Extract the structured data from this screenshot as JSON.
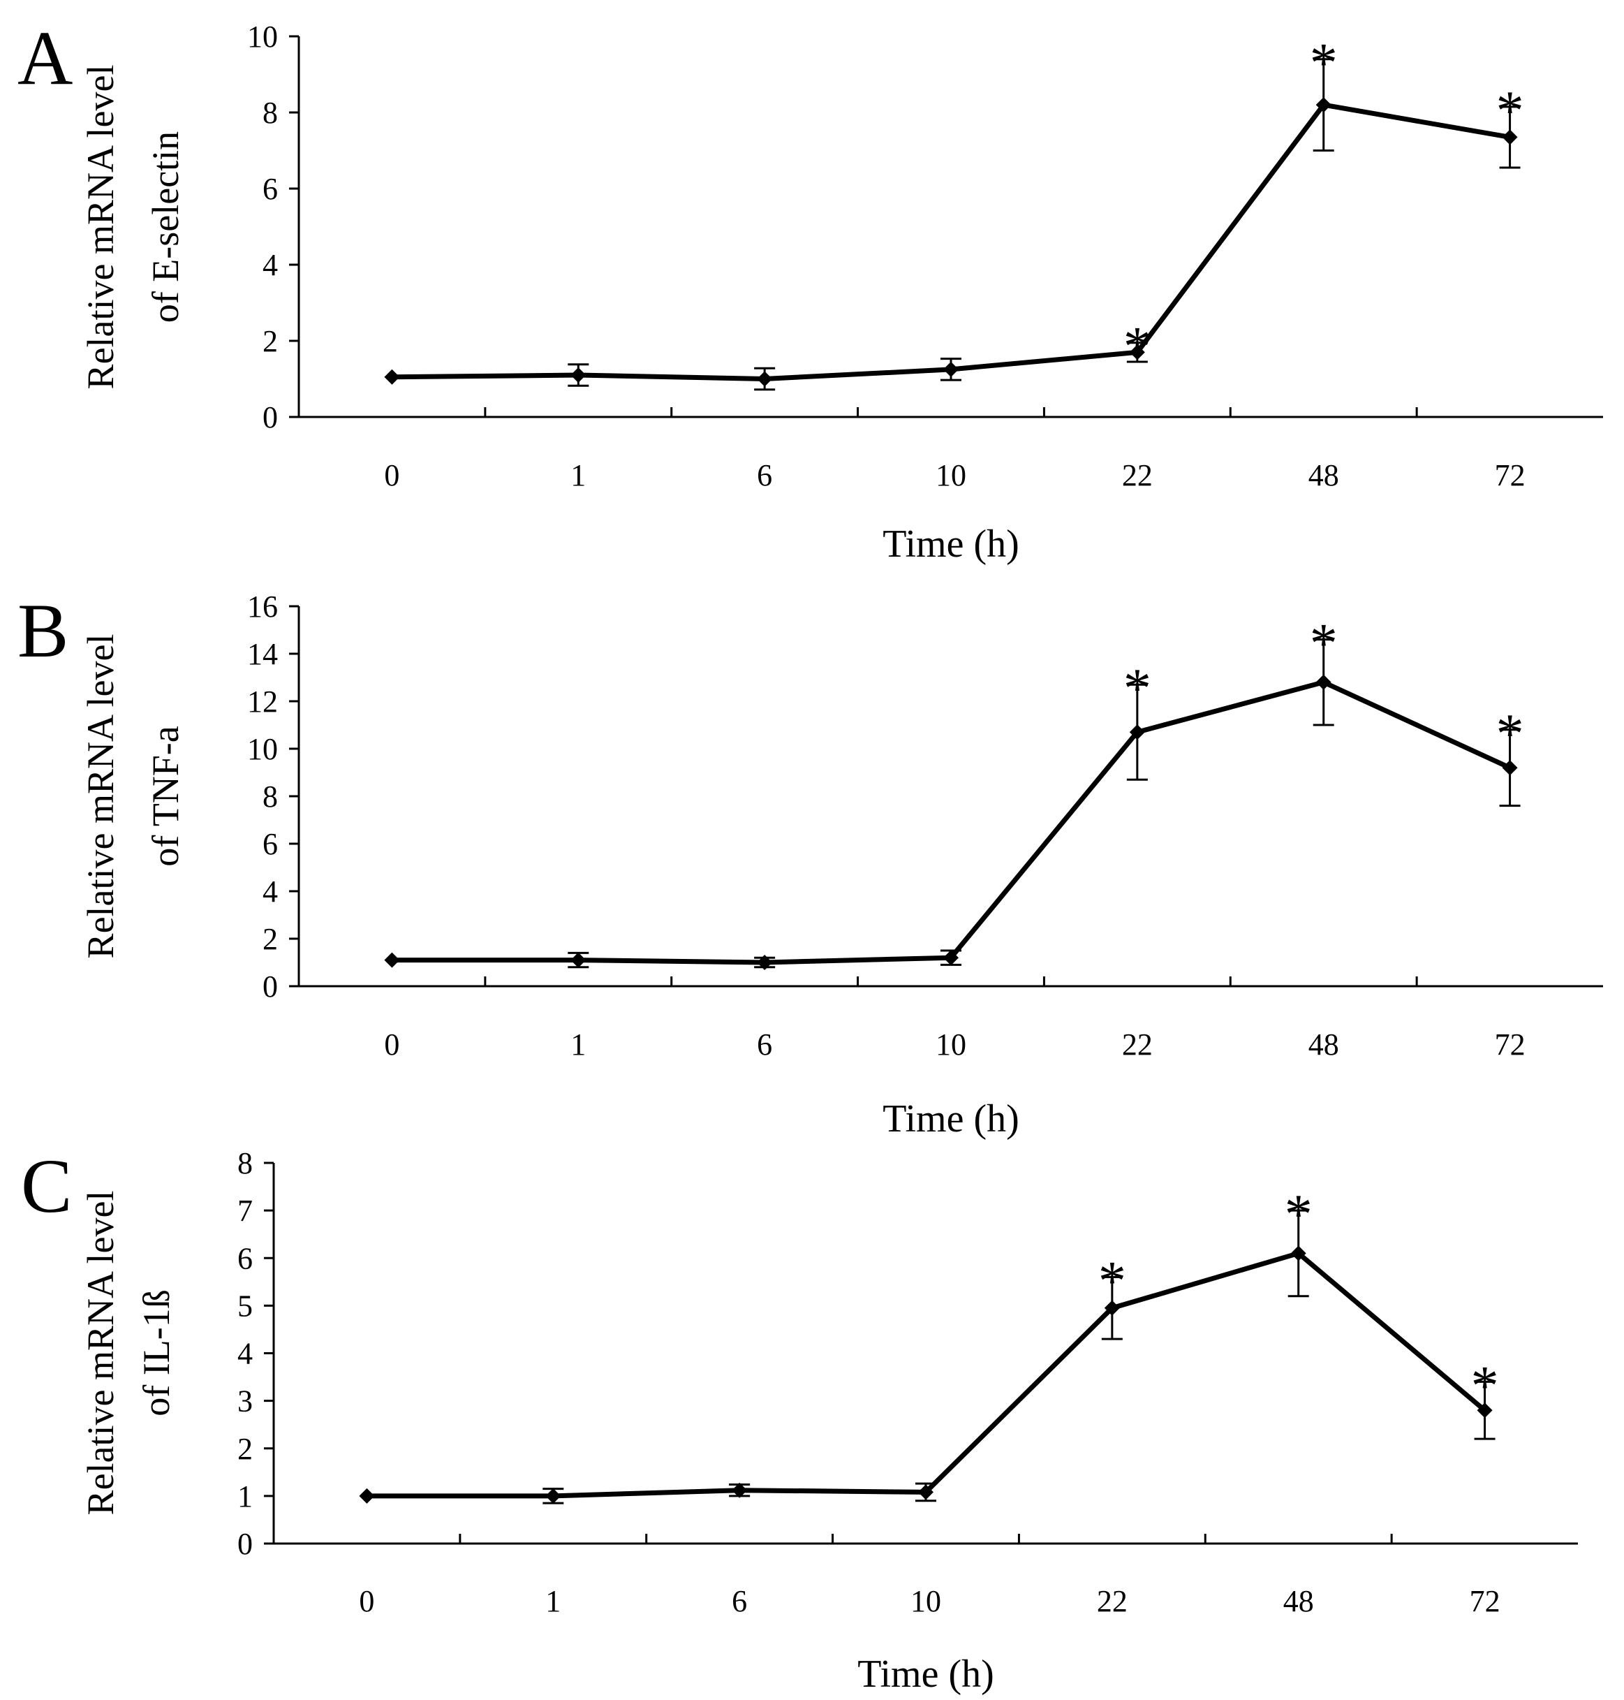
{
  "figure": {
    "panels": [
      {
        "id": "A",
        "letter": "A",
        "chart_data": {
          "type": "line",
          "title": "",
          "xlabel": "Time (h)",
          "ylabel_lines": [
            "Relative mRNA level",
            "of E-selectin"
          ],
          "categories": [
            "0",
            "1",
            "6",
            "10",
            "22",
            "48",
            "72"
          ],
          "series": [
            {
              "name": "E-selectin",
              "values": [
                1.05,
                1.1,
                1.0,
                1.25,
                1.7,
                8.2,
                7.35
              ],
              "errors": [
                0.0,
                0.28,
                0.28,
                0.28,
                0.25,
                1.2,
                0.8
              ],
              "significant": [
                false,
                false,
                false,
                false,
                true,
                true,
                true
              ]
            }
          ],
          "ylim": [
            0,
            10
          ],
          "yticks": [
            0,
            2,
            4,
            6,
            8,
            10
          ],
          "significance_marker": "*",
          "grid": false,
          "legend": "none"
        }
      },
      {
        "id": "B",
        "letter": "B",
        "chart_data": {
          "type": "line",
          "title": "",
          "xlabel": "Time (h)",
          "ylabel_lines": [
            "Relative mRNA level",
            "of TNF-a"
          ],
          "categories": [
            "0",
            "1",
            "6",
            "10",
            "22",
            "48",
            "72"
          ],
          "series": [
            {
              "name": "TNF-a",
              "values": [
                1.1,
                1.1,
                1.0,
                1.2,
                10.7,
                12.8,
                9.2
              ],
              "errors": [
                0.0,
                0.3,
                0.2,
                0.3,
                2.0,
                1.8,
                1.6
              ],
              "significant": [
                false,
                false,
                false,
                false,
                true,
                true,
                true
              ]
            }
          ],
          "ylim": [
            0,
            16
          ],
          "yticks": [
            0,
            2,
            4,
            6,
            8,
            10,
            12,
            14,
            16
          ],
          "significance_marker": "*",
          "grid": false,
          "legend": "none"
        }
      },
      {
        "id": "C",
        "letter": "C",
        "chart_data": {
          "type": "line",
          "title": "",
          "xlabel": "Time (h)",
          "ylabel_lines": [
            "Relative mRNA level",
            "of IL-1ß"
          ],
          "categories": [
            "0",
            "1",
            "6",
            "10",
            "22",
            "48",
            "72"
          ],
          "series": [
            {
              "name": "IL-1ß",
              "values": [
                1.0,
                1.0,
                1.12,
                1.08,
                4.95,
                6.1,
                2.8
              ],
              "errors": [
                0.0,
                0.15,
                0.12,
                0.18,
                0.65,
                0.9,
                0.6
              ],
              "significant": [
                false,
                false,
                false,
                false,
                true,
                true,
                true
              ]
            }
          ],
          "ylim": [
            0,
            8
          ],
          "yticks": [
            0,
            1,
            2,
            3,
            4,
            5,
            6,
            7,
            8
          ],
          "significance_marker": "*",
          "grid": false,
          "legend": "none"
        }
      }
    ],
    "colors": {
      "line": "#000000",
      "axis": "#000000",
      "background": "#ffffff"
    }
  }
}
